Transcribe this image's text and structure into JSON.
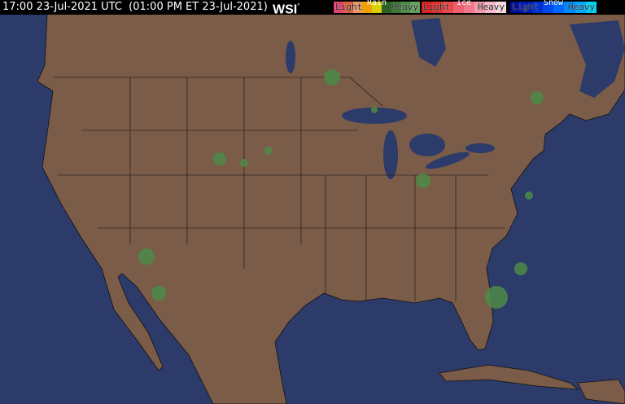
{
  "header": {
    "timestamp": "17:00 23-Jul-2021 UTC  (01:00 PM ET 23-Jul-2021)",
    "logo": "WSI",
    "logo_mark": "°"
  },
  "legend": [
    {
      "title": "Rain",
      "light": "Light",
      "heavy": "Heavy",
      "colors": [
        "#64a05a",
        "#4e8a48",
        "#3c7636",
        "#2c6228",
        "#d8d000",
        "#f0a000",
        "#e8986a",
        "#e06040",
        "#e04070"
      ]
    },
    {
      "title": "Ice",
      "light": "Light",
      "heavy": "Heavy",
      "colors": [
        "#f8d8e0",
        "#f4b8c8",
        "#f09aa8",
        "#f07888",
        "#ee6070",
        "#e84848",
        "#e03030",
        "#d82020"
      ]
    },
    {
      "title": "Snow",
      "light": "Light",
      "heavy": "Heavy",
      "colors": [
        "#00d0f0",
        "#00a8f8",
        "#0088ff",
        "#0068f8",
        "#0048e8",
        "#0030d0",
        "#0018b8",
        "#000ca0"
      ]
    }
  ],
  "map": {
    "ocean_color": "#2c3b69",
    "land_color": "#7a5c48",
    "border_color": "#000000",
    "radar_color": "#4e8a48"
  }
}
